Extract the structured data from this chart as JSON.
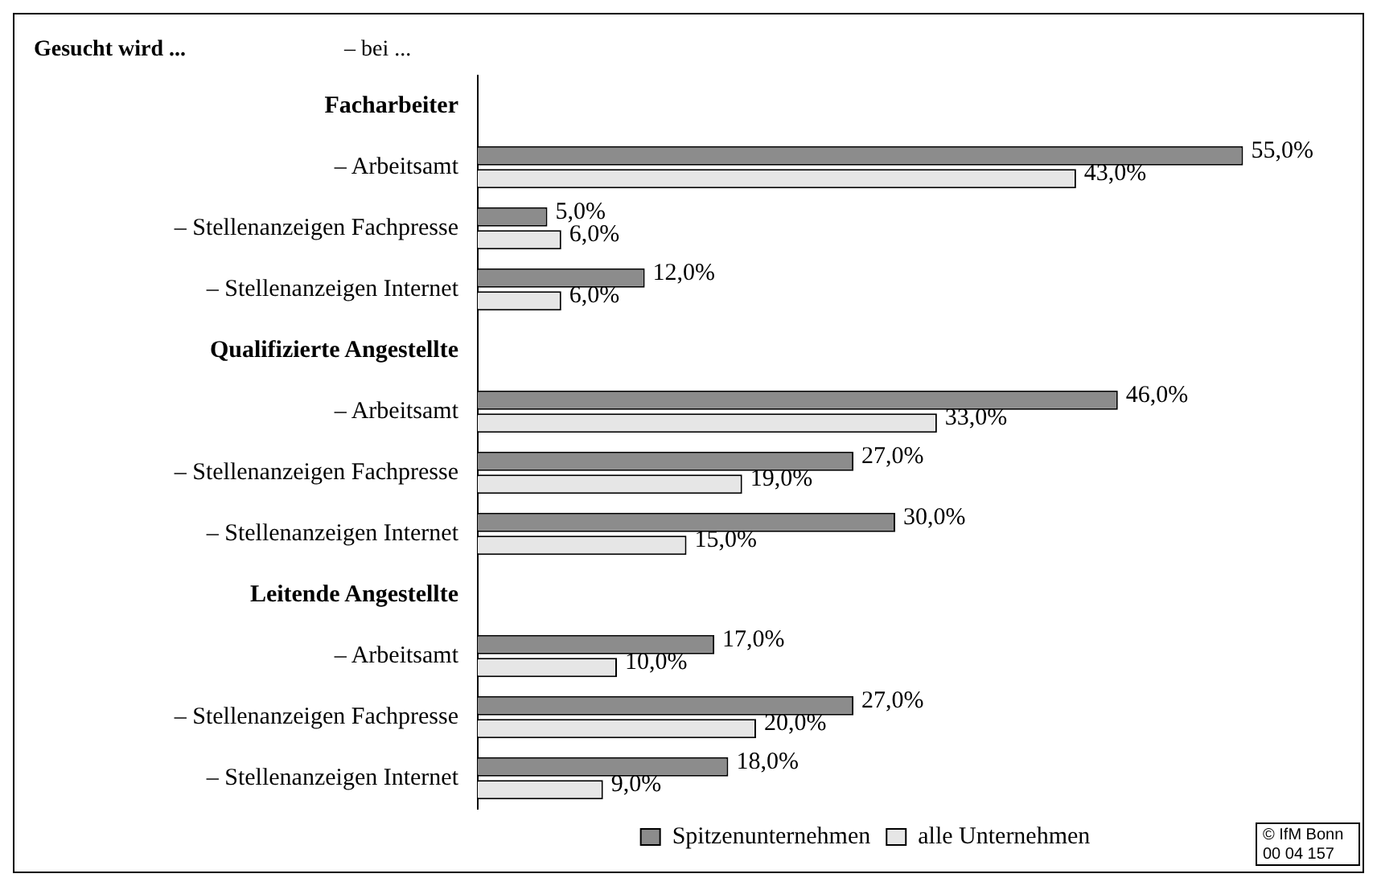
{
  "chart_data": {
    "type": "bar",
    "orientation": "horizontal",
    "categories": [
      "Facharbeiter",
      "– Arbeitsamt",
      "– Stellenanzeigen Fachpresse",
      "– Stellenanzeigen Internet",
      "Qualifizierte Angestellte",
      "– Arbeitsamt",
      "– Stellenanzeigen Fachpresse",
      "– Stellenanzeigen Internet",
      "Leitende Angestellte",
      "– Arbeitsamt",
      "– Stellenanzeigen Fachpresse",
      "– Stellenanzeigen Internet"
    ],
    "series": [
      {
        "name": "Spitzenunternehmen",
        "color": "#8c8c8c",
        "values": [
          null,
          55,
          5,
          12,
          null,
          46,
          27,
          30,
          null,
          17,
          27,
          18
        ],
        "value_labels": [
          null,
          "55,0%",
          "5,0%",
          "12,0%",
          null,
          "46,0%",
          "27,0%",
          "30,0%",
          null,
          "17,0%",
          "27,0%",
          "18,0%"
        ]
      },
      {
        "name": "alle Unternehmen",
        "color": "#e6e6e6",
        "values": [
          null,
          43,
          6,
          6,
          null,
          33,
          19,
          15,
          null,
          10,
          20,
          9
        ],
        "value_labels": [
          null,
          "43,0%",
          "6,0%",
          "6,0%",
          null,
          "33,0%",
          "19,0%",
          "15,0%",
          null,
          "10,0%",
          "20,0%",
          "9,0%"
        ]
      }
    ],
    "annotations": [
      "Gesucht wird ...",
      "– bei ...",
      "© IfM Bonn 00 04 157"
    ],
    "legend": "bottom",
    "grid": false
  }
}
